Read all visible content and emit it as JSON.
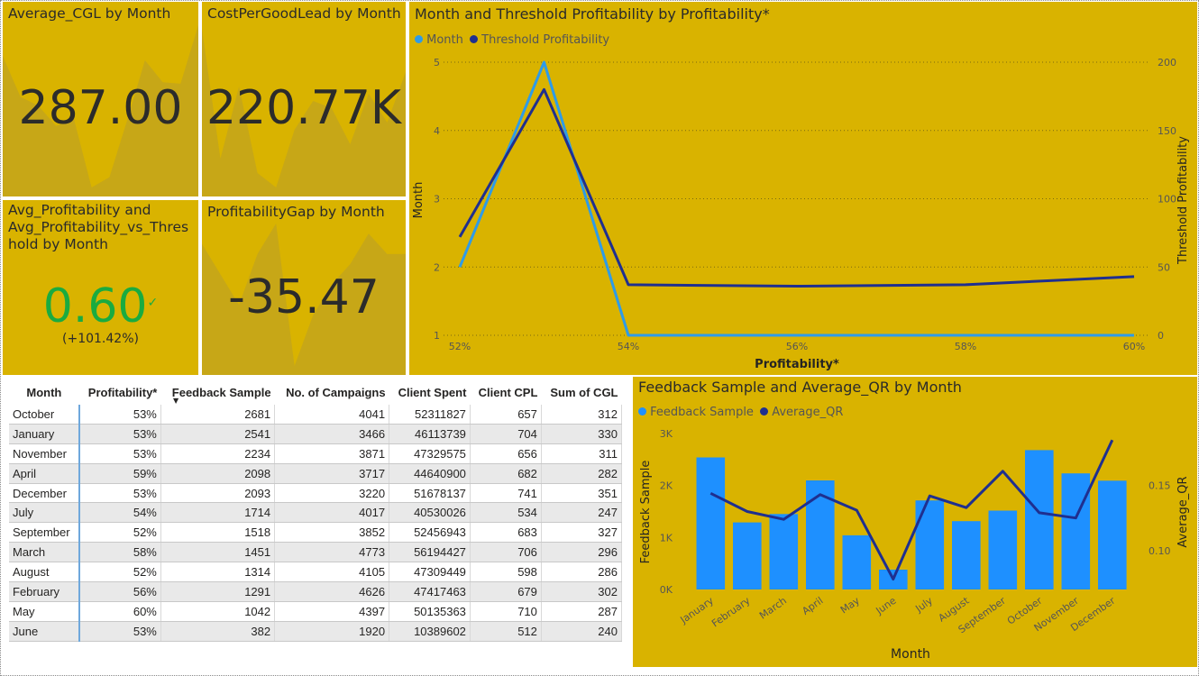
{
  "tiles": {
    "avg_cgl": {
      "title": "Average_CGL by Month",
      "value": "287.00"
    },
    "cost_per_good_lead": {
      "title": "CostPerGoodLead by Month",
      "value": "220.77K"
    },
    "avg_profitability": {
      "title_line1": "Avg_Profitability and",
      "title_line2": "Avg_Profitability_vs_Thres",
      "title_line3": "hold by Month",
      "value": "0.60",
      "check": "✓",
      "change": "(+101.42%)",
      "value_color": "#1AAB40"
    },
    "profitability_gap": {
      "title": "ProfitabilityGap by Month",
      "value": "-35.47"
    }
  },
  "line_chart": {
    "title": "Month and Threshold Profitability by Profitability*",
    "legend": [
      {
        "label": "Month",
        "color": "#2E9BE8"
      },
      {
        "label": "Threshold Profitability",
        "color": "#1F2F8F"
      }
    ],
    "xlabel": "Profitability*",
    "ylabel_left": "Month",
    "ylabel_right": "Threshold Profitability",
    "x_ticks": [
      "52%",
      "54%",
      "56%",
      "58%",
      "60%"
    ],
    "left_ticks": [
      "1",
      "2",
      "3",
      "4",
      "5"
    ],
    "right_ticks": [
      "0",
      "50",
      "100",
      "150",
      "200"
    ]
  },
  "table": {
    "columns": [
      "Month",
      "Profitability*",
      "Feedback Sample",
      "No. of Campaigns",
      "Client Spent",
      "Client CPL",
      "Sum of CGL"
    ],
    "rows": [
      [
        "October",
        "53%",
        "2681",
        "4041",
        "52311827",
        "657",
        "312"
      ],
      [
        "January",
        "53%",
        "2541",
        "3466",
        "46113739",
        "704",
        "330"
      ],
      [
        "November",
        "53%",
        "2234",
        "3871",
        "47329575",
        "656",
        "311"
      ],
      [
        "April",
        "59%",
        "2098",
        "3717",
        "44640900",
        "682",
        "282"
      ],
      [
        "December",
        "53%",
        "2093",
        "3220",
        "51678137",
        "741",
        "351"
      ],
      [
        "July",
        "54%",
        "1714",
        "4017",
        "40530026",
        "534",
        "247"
      ],
      [
        "September",
        "52%",
        "1518",
        "3852",
        "52456943",
        "683",
        "327"
      ],
      [
        "March",
        "58%",
        "1451",
        "4773",
        "56194427",
        "706",
        "296"
      ],
      [
        "August",
        "52%",
        "1314",
        "4105",
        "47309449",
        "598",
        "286"
      ],
      [
        "February",
        "56%",
        "1291",
        "4626",
        "47417463",
        "679",
        "302"
      ],
      [
        "May",
        "60%",
        "1042",
        "4397",
        "50135363",
        "710",
        "287"
      ],
      [
        "June",
        "53%",
        "382",
        "1920",
        "10389602",
        "512",
        "240"
      ]
    ]
  },
  "bar_chart": {
    "title": "Feedback Sample and Average_QR by Month",
    "legend": [
      {
        "label": "Feedback Sample",
        "color": "#1E90FF"
      },
      {
        "label": "Average_QR",
        "color": "#1F2F8F"
      }
    ],
    "xlabel": "Month",
    "ylabel_left": "Feedback Sample",
    "ylabel_right": "Average_QR",
    "left_ticks": [
      "0K",
      "1K",
      "2K",
      "3K"
    ],
    "right_ticks": [
      "0.10",
      "0.15"
    ]
  },
  "chart_data": [
    {
      "type": "line",
      "title": "Month and Threshold Profitability by Profitability*",
      "xlabel": "Profitability*",
      "ylabel": "Month",
      "y2label": "Threshold Profitability",
      "x": [
        0.52,
        0.53,
        0.54,
        0.56,
        0.58,
        0.59,
        0.6
      ],
      "xlim": [
        0.52,
        0.6
      ],
      "series": [
        {
          "name": "Month",
          "axis": "left",
          "ylim": [
            1,
            5
          ],
          "values": [
            2,
            5,
            1,
            1,
            1,
            1,
            1
          ]
        },
        {
          "name": "Threshold Profitability",
          "axis": "right",
          "ylim": [
            0,
            200
          ],
          "values": [
            72,
            180,
            37,
            36,
            37,
            40,
            43
          ]
        }
      ],
      "grid": true,
      "legend_position": "top-left"
    },
    {
      "type": "bar",
      "title": "Feedback Sample and Average_QR by Month",
      "xlabel": "Month",
      "categories": [
        "January",
        "February",
        "March",
        "April",
        "May",
        "June",
        "July",
        "August",
        "September",
        "October",
        "November",
        "December"
      ],
      "series": [
        {
          "name": "Feedback Sample",
          "type": "bar",
          "axis": "left",
          "ylim": [
            0,
            3000
          ],
          "values": [
            2541,
            1291,
            1451,
            2098,
            1042,
            382,
            1714,
            1314,
            1518,
            2681,
            2234,
            2093
          ]
        },
        {
          "name": "Average_QR",
          "type": "line",
          "axis": "right",
          "ylim": [
            0.07,
            0.19
          ],
          "values": [
            0.144,
            0.13,
            0.124,
            0.143,
            0.131,
            0.078,
            0.142,
            0.133,
            0.161,
            0.129,
            0.125,
            0.185
          ]
        }
      ],
      "legend_position": "top-left"
    }
  ],
  "sparklines": {
    "avg_cgl": [
      330,
      302,
      296,
      282,
      287,
      240,
      247,
      286,
      327,
      312,
      311,
      351
    ],
    "cost_per_good_lead": [
      250,
      160,
      210,
      150,
      140,
      180,
      200,
      195,
      170,
      205,
      185,
      220
    ],
    "profitability_gap": [
      -30,
      -33,
      -36,
      -31,
      -28,
      -42,
      -37,
      -34,
      -32,
      -29,
      -31,
      -31
    ]
  }
}
